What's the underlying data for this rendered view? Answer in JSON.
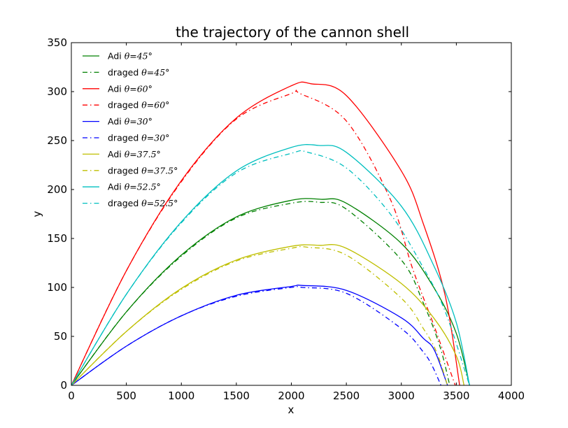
{
  "chart_data": {
    "type": "line",
    "title": "the trajectory of the cannon shell",
    "xlabel": "x",
    "ylabel": "y",
    "xlim": [
      0,
      4000
    ],
    "ylim": [
      0,
      350
    ],
    "xticks": [
      "0",
      "500",
      "1000",
      "1500",
      "2000",
      "2500",
      "3000",
      "3500",
      "4000"
    ],
    "yticks": [
      "0",
      "50",
      "100",
      "150",
      "200",
      "250",
      "300",
      "350"
    ],
    "grid": false,
    "legend_position": "top-left",
    "series": [
      {
        "name": "Adi θ=45°",
        "legend_prefix": "Adi",
        "legend_math": "θ=45°",
        "color": "#008000",
        "style": "solid",
        "x": [
          0,
          500,
          1000,
          1500,
          2000,
          2270,
          2500,
          3000,
          3300,
          3500,
          3620
        ],
        "y": [
          0,
          75,
          133,
          172,
          189,
          190,
          186,
          145,
          99,
          53,
          0
        ]
      },
      {
        "name": "draged θ=45°",
        "legend_prefix": "draged",
        "legend_math": "θ=45°",
        "color": "#008000",
        "style": "dashdot",
        "x": [
          0,
          500,
          1000,
          1500,
          2000,
          2250,
          2500,
          3000,
          3200,
          3350,
          3440
        ],
        "y": [
          0,
          75,
          132,
          171,
          186,
          187,
          180,
          128,
          84,
          40,
          0
        ]
      },
      {
        "name": "Adi θ=60°",
        "legend_prefix": "Adi",
        "legend_math": "θ=60°",
        "color": "#ff0000",
        "style": "solid",
        "x": [
          0,
          500,
          1000,
          1500,
          2000,
          2180,
          2500,
          3000,
          3200,
          3400,
          3530
        ],
        "y": [
          0,
          117,
          209,
          273,
          306,
          308,
          296,
          219,
          165,
          91,
          0
        ]
      },
      {
        "name": "draged θ=60°",
        "legend_prefix": "draged",
        "legend_math": "θ=60°",
        "color": "#ff0000",
        "style": "dashdot",
        "x": [
          0,
          500,
          1000,
          1500,
          2000,
          2080,
          2500,
          2900,
          3100,
          3300,
          3490
        ],
        "y": [
          0,
          117,
          208,
          272,
          298,
          298,
          270,
          190,
          120,
          60,
          0
        ]
      },
      {
        "name": "Adi θ=30°",
        "legend_prefix": "Adi",
        "legend_math": "θ=30°",
        "color": "#0000ff",
        "style": "solid",
        "x": [
          0,
          500,
          1000,
          1500,
          2000,
          2100,
          2500,
          3000,
          3200,
          3300,
          3420
        ],
        "y": [
          0,
          40,
          71,
          92,
          101,
          102,
          97,
          69,
          48,
          36,
          0
        ]
      },
      {
        "name": "draged θ=30°",
        "legend_prefix": "draged",
        "legend_math": "θ=30°",
        "color": "#0000ff",
        "style": "dashdot",
        "x": [
          0,
          500,
          1000,
          1500,
          2000,
          2100,
          2500,
          3000,
          3200,
          3280,
          3360
        ],
        "y": [
          0,
          40,
          71,
          91,
          100,
          100,
          94,
          58,
          34,
          20,
          0
        ]
      },
      {
        "name": "Adi θ=37.5°",
        "legend_prefix": "Adi",
        "legend_math": "θ=37.5°",
        "color": "#bfbf00",
        "style": "solid",
        "x": [
          0,
          500,
          1000,
          1500,
          2000,
          2250,
          2500,
          3000,
          3300,
          3500,
          3570
        ],
        "y": [
          0,
          55,
          99,
          128,
          142,
          143,
          140,
          104,
          68,
          30,
          0
        ]
      },
      {
        "name": "draged θ=37.5°",
        "legend_prefix": "draged",
        "legend_math": "θ=37.5°",
        "color": "#bfbf00",
        "style": "dashdot",
        "x": [
          0,
          500,
          1000,
          1500,
          2000,
          2150,
          2500,
          3000,
          3200,
          3320,
          3420
        ],
        "y": [
          0,
          55,
          98,
          127,
          140,
          141,
          133,
          89,
          58,
          34,
          0
        ]
      },
      {
        "name": "Adi θ=52.5°",
        "legend_prefix": "Adi",
        "legend_math": "θ=52.5°",
        "color": "#00bfbf",
        "style": "solid",
        "x": [
          0,
          500,
          1000,
          1500,
          2000,
          2250,
          2500,
          3000,
          3300,
          3500,
          3620
        ],
        "y": [
          0,
          93,
          167,
          219,
          243,
          245,
          238,
          183,
          121,
          64,
          0
        ]
      },
      {
        "name": "draged θ=52.5°",
        "legend_prefix": "draged",
        "legend_math": "θ=52.5°",
        "color": "#00bfbf",
        "style": "dashdot",
        "x": [
          0,
          500,
          1000,
          1500,
          2000,
          2150,
          2500,
          2900,
          3200,
          3400,
          3620
        ],
        "y": [
          0,
          93,
          166,
          217,
          237,
          238,
          222,
          175,
          120,
          75,
          0
        ]
      }
    ]
  }
}
